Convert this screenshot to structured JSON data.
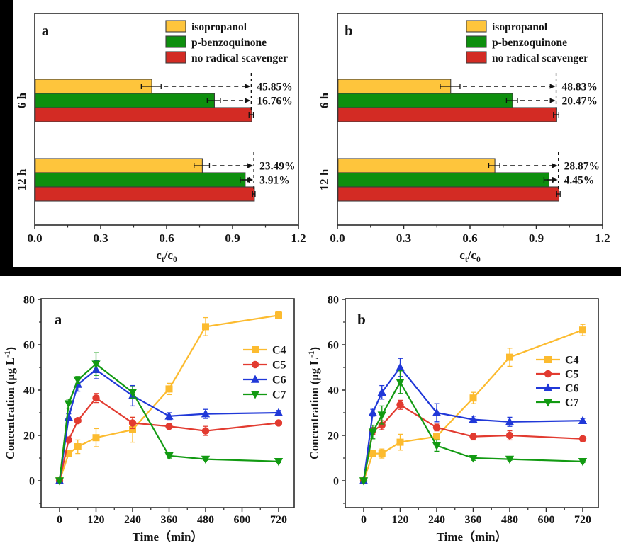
{
  "figure": {
    "background": "#ffffff",
    "frame_color": "#2b2b2b",
    "decor_color": "#000000",
    "text_color": "#151515"
  },
  "chart_data": [
    {
      "id": "top-a",
      "type": "bar",
      "orientation": "horizontal",
      "panel_label": "a",
      "categories": [
        "6 h",
        "12 h"
      ],
      "series": [
        {
          "name": "isopropanol",
          "color": "#FEC53C",
          "values": [
            0.53,
            0.76
          ],
          "errors": [
            0.045,
            0.035
          ]
        },
        {
          "name": "p-benzoquinone",
          "color": "#0E8F0E",
          "values": [
            0.815,
            0.955
          ],
          "errors": [
            0.03,
            0.02
          ]
        },
        {
          "name": "no radical scavenger",
          "color": "#D32B24",
          "values": [
            0.985,
            0.997
          ],
          "errors": [
            0.01,
            0.006
          ]
        }
      ],
      "annotations": [
        [
          "45.85%",
          "16.76%"
        ],
        [
          "23.49%",
          "3.91%"
        ]
      ],
      "xlim": [
        0,
        1.2
      ],
      "xticks": [
        0.0,
        0.3,
        0.6,
        0.9,
        1.2
      ],
      "xlabel": "ct/c0",
      "xlabel_rich": [
        {
          "t": "c"
        },
        {
          "t": "t",
          "sub": true
        },
        {
          "t": "/c"
        },
        {
          "t": "0",
          "sub": true
        }
      ],
      "legend_position": "top-right",
      "grid": false
    },
    {
      "id": "top-b",
      "type": "bar",
      "orientation": "horizontal",
      "panel_label": "b",
      "categories": [
        "6 h",
        "12 h"
      ],
      "series": [
        {
          "name": "isopropanol",
          "color": "#FEC53C",
          "values": [
            0.51,
            0.71
          ],
          "errors": [
            0.045,
            0.025
          ]
        },
        {
          "name": "p-benzoquinone",
          "color": "#0E8F0E",
          "values": [
            0.79,
            0.955
          ],
          "errors": [
            0.025,
            0.02
          ]
        },
        {
          "name": "no radical scavenger",
          "color": "#D32B24",
          "values": [
            0.99,
            1.0
          ],
          "errors": [
            0.012,
            0.008
          ]
        }
      ],
      "annotations": [
        [
          "48.83%",
          "20.47%"
        ],
        [
          "28.87%",
          "4.45%"
        ]
      ],
      "xlim": [
        0,
        1.2
      ],
      "xticks": [
        0.0,
        0.3,
        0.6,
        0.9,
        1.2
      ],
      "xlabel": "ct/c0",
      "xlabel_rich": [
        {
          "t": "c"
        },
        {
          "t": "t",
          "sub": true
        },
        {
          "t": "/c"
        },
        {
          "t": "0",
          "sub": true
        }
      ],
      "legend_position": "top-right",
      "grid": false
    },
    {
      "id": "bottom-a",
      "type": "line",
      "panel_label": "a",
      "x": [
        0,
        30,
        60,
        120,
        240,
        360,
        480,
        720
      ],
      "xticks": [
        0,
        120,
        240,
        360,
        480,
        600,
        720
      ],
      "yticks": [
        0,
        20,
        40,
        60,
        80
      ],
      "xlim": [
        -60,
        770
      ],
      "ylim": [
        -12,
        80
      ],
      "xlabel": "Time（min）",
      "ylabel": "Concentration (μg L-1)",
      "ylabel_rich": [
        {
          "t": "Concentration (μg L"
        },
        {
          "t": "-1",
          "sup": true
        },
        {
          "t": ")"
        }
      ],
      "series": [
        {
          "name": "C4",
          "color": "#FCBB2F",
          "marker": "square",
          "values": [
            0,
            12,
            15,
            19,
            22.5,
            40.5,
            68,
            73
          ],
          "errors": [
            0.5,
            1,
            3,
            4,
            5.5,
            2.5,
            4,
            1.5
          ]
        },
        {
          "name": "C5",
          "color": "#E23B30",
          "marker": "circle",
          "values": [
            0,
            18,
            26.5,
            36.5,
            25.5,
            24,
            22,
            25.5
          ],
          "errors": [
            0.5,
            1,
            1,
            2,
            2.5,
            1,
            2,
            1
          ]
        },
        {
          "name": "C6",
          "color": "#2038D8",
          "marker": "triangle-up",
          "values": [
            0,
            28,
            42.5,
            49,
            37.5,
            28.5,
            29.5,
            30
          ],
          "errors": [
            0.5,
            1.5,
            3,
            4,
            4.5,
            1.5,
            2,
            1
          ]
        },
        {
          "name": "C7",
          "color": "#129A12",
          "marker": "triangle-down",
          "values": [
            0,
            34,
            44.5,
            51.5,
            39,
            11,
            9.5,
            8.5
          ],
          "errors": [
            0.5,
            2,
            1.5,
            5,
            2.5,
            1,
            0.5,
            0.5
          ]
        }
      ],
      "legend_position": "right",
      "grid": false
    },
    {
      "id": "bottom-b",
      "type": "line",
      "panel_label": "b",
      "x": [
        0,
        30,
        60,
        120,
        240,
        360,
        480,
        720
      ],
      "xticks": [
        0,
        120,
        240,
        360,
        480,
        600,
        720
      ],
      "yticks": [
        0,
        20,
        40,
        60,
        80
      ],
      "xlim": [
        -60,
        770
      ],
      "ylim": [
        -12,
        80
      ],
      "xlabel": "Time（min）",
      "ylabel": "Concentration (μg L-1)",
      "ylabel_rich": [
        {
          "t": "Concentration (μg L"
        },
        {
          "t": "-1",
          "sup": true
        },
        {
          "t": ")"
        }
      ],
      "series": [
        {
          "name": "C4",
          "color": "#FCBB2F",
          "marker": "square",
          "values": [
            0,
            12,
            12,
            17,
            19.5,
            36.5,
            54.5,
            66.5
          ],
          "errors": [
            0.5,
            1,
            2,
            3.5,
            1.5,
            2.5,
            4,
            2.5
          ]
        },
        {
          "name": "C5",
          "color": "#E23B30",
          "marker": "circle",
          "values": [
            0,
            22,
            24.5,
            33.5,
            23.5,
            19.5,
            20,
            18.5
          ],
          "errors": [
            0.5,
            1.5,
            2,
            2,
            1.5,
            1.5,
            2,
            1
          ]
        },
        {
          "name": "C6",
          "color": "#2038D8",
          "marker": "triangle-up",
          "values": [
            0,
            30,
            39,
            50,
            30,
            27,
            26,
            26.5
          ],
          "errors": [
            0.5,
            1.5,
            3,
            4,
            4,
            1.5,
            2,
            1
          ]
        },
        {
          "name": "C7",
          "color": "#129A12",
          "marker": "triangle-down",
          "values": [
            0,
            21.5,
            29,
            43.5,
            15.5,
            10,
            9.5,
            8.5
          ],
          "errors": [
            0.5,
            3,
            4,
            5,
            2.5,
            1,
            0.5,
            0.5
          ]
        }
      ],
      "legend_position": "right",
      "grid": false
    }
  ]
}
